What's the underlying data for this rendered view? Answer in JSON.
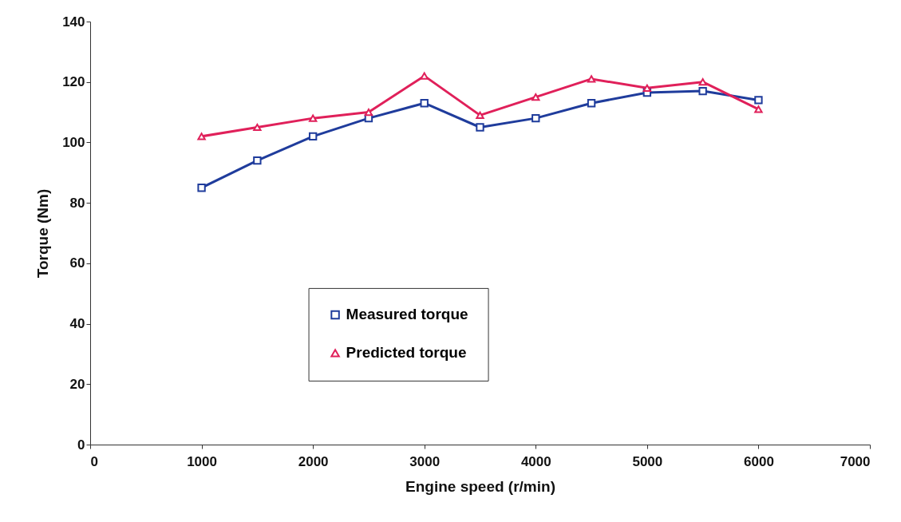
{
  "chart_data": {
    "type": "line",
    "xlabel": "Engine speed (r/min)",
    "ylabel": "Torque (Nm)",
    "x": [
      1000,
      1500,
      2000,
      2500,
      3000,
      3500,
      4000,
      4500,
      5000,
      5500,
      6000
    ],
    "series": [
      {
        "name": "Measured torque",
        "color": "#1f3c9c",
        "marker": "square",
        "values": [
          85,
          94,
          102,
          108,
          113,
          105,
          108,
          113,
          116.5,
          117,
          114
        ]
      },
      {
        "name": "Predicted torque",
        "color": "#e0205a",
        "marker": "triangle",
        "values": [
          102,
          105,
          108,
          110,
          122,
          109,
          115,
          121,
          118,
          120,
          111
        ]
      }
    ],
    "xlim": [
      0,
      7000
    ],
    "xticks": [
      0,
      1000,
      2000,
      3000,
      4000,
      5000,
      6000,
      7000
    ],
    "ylim": [
      0,
      140
    ],
    "yticks": [
      0,
      20,
      40,
      60,
      80,
      100,
      120,
      140
    ],
    "grid": false,
    "legend": "bottom"
  }
}
